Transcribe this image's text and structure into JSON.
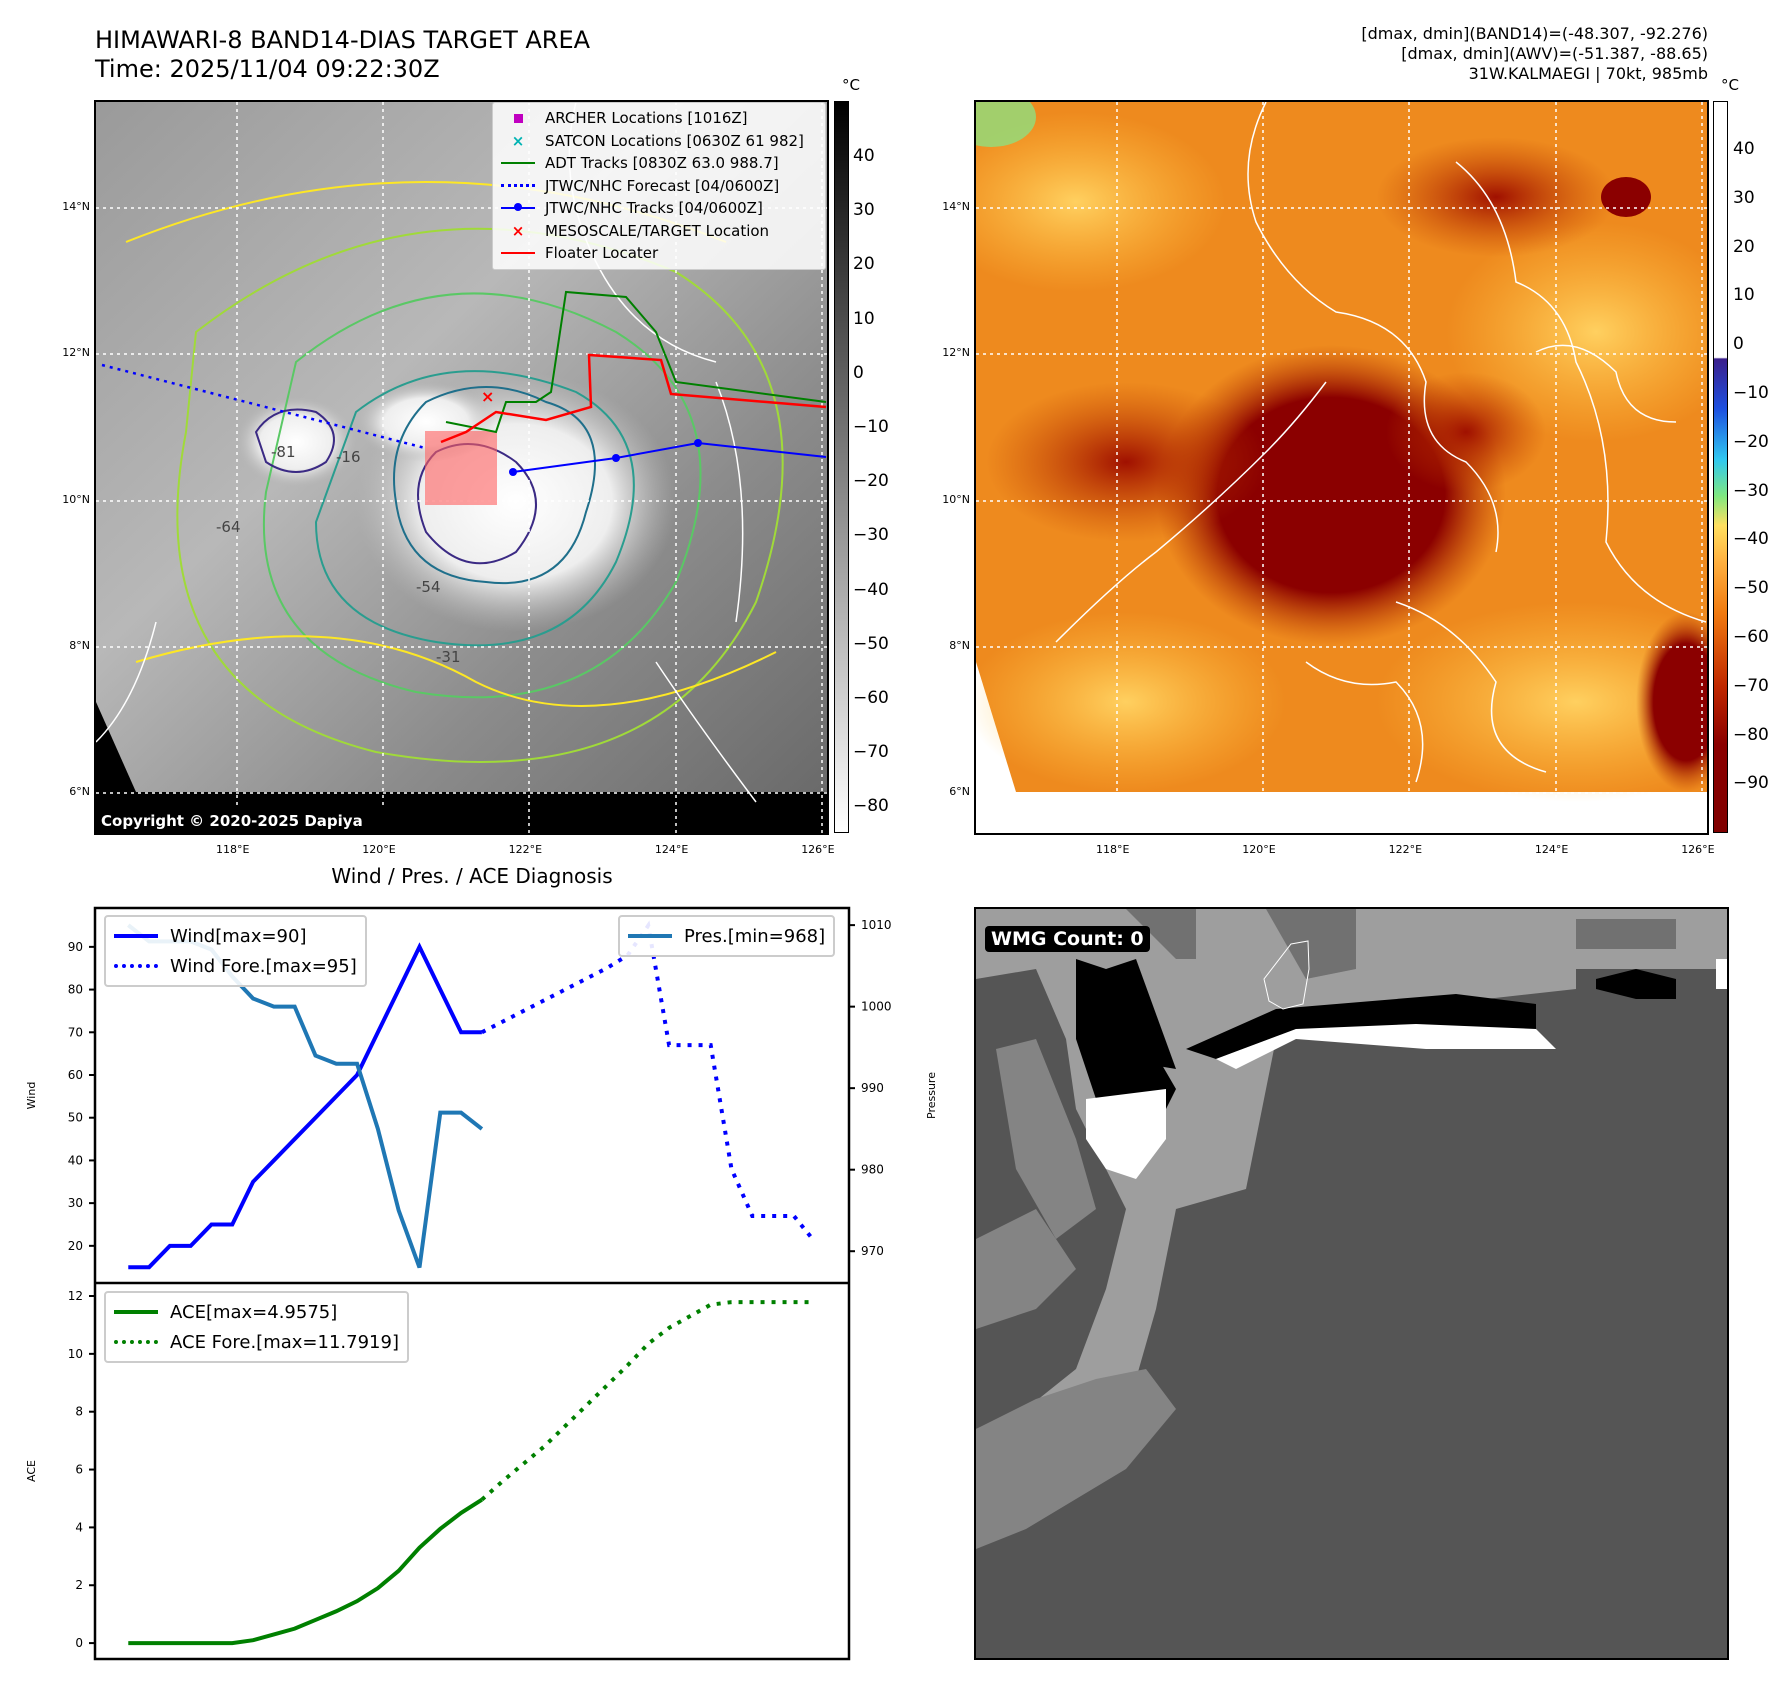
{
  "header": {
    "title_line1": "HIMAWARI-8 BAND14-DIAS TARGET AREA",
    "title_line2": "Time: 2025/11/04 09:22:30Z",
    "info_line1": "[dmax, dmin](BAND14)=(-48.307, -92.276)",
    "info_line2": "[dmax, dmin](AWV)=(-51.387, -88.65)",
    "info_line3": "31W.KALMAEGI | 70kt, 985mb"
  },
  "map": {
    "lat_ticks": [
      "14°N",
      "12°N",
      "10°N",
      "8°N",
      "6°N"
    ],
    "lon_ticks": [
      "118°E",
      "120°E",
      "122°E",
      "124°E",
      "126°E"
    ],
    "copyright": "Copyright © 2020-2025 Dapiya",
    "contour_labels": [
      "-31",
      "-16",
      "-64",
      "-81",
      "-54"
    ],
    "legend": [
      {
        "label": "ARCHER Locations [1016Z]",
        "color": "#c000c0",
        "icon": "square-marker-icon"
      },
      {
        "label": "SATCON Locations [0630Z 61 982]",
        "color": "#00b3b3",
        "icon": "x-marker-icon"
      },
      {
        "label": "ADT Tracks [0830Z 63.0 988.7]",
        "color": "#008000",
        "icon": "solid-line-icon"
      },
      {
        "label": "JTWC/NHC Forecast [04/0600Z]",
        "color": "#0000ff",
        "icon": "dotted-line-icon"
      },
      {
        "label": "JTWC/NHC Tracks [04/0600Z]",
        "color": "#0000ff",
        "icon": "line-dot-icon"
      },
      {
        "label": "MESOSCALE/TARGET Location",
        "color": "#ff0000",
        "icon": "x-marker-icon"
      },
      {
        "label": "Floater Locater",
        "color": "#ff0000",
        "icon": "solid-line-icon"
      }
    ]
  },
  "colorbar_left": {
    "unit": "°C",
    "ticks": [
      "40",
      "30",
      "20",
      "10",
      "0",
      "−10",
      "−20",
      "−30",
      "−40",
      "−50",
      "−60",
      "−70",
      "−80"
    ]
  },
  "colorbar_right": {
    "unit": "°C",
    "ticks": [
      "40",
      "30",
      "20",
      "10",
      "0",
      "−10",
      "−20",
      "−30",
      "−40",
      "−50",
      "−60",
      "−70",
      "−80",
      "−90"
    ]
  },
  "wmg": {
    "label": "WMG Count: 0"
  },
  "chart_data": {
    "type": "line",
    "title": "Wind / Pres. / ACE Diagnosis",
    "x_range": [
      -1.6,
      34.65
    ],
    "wind": {
      "ylabel": "Wind",
      "ylim": [
        11.3,
        99.1
      ],
      "ticks": [
        20,
        30,
        40,
        50,
        60,
        70,
        80,
        90
      ],
      "series": [
        {
          "name": "Wind[max=90]",
          "style": "solid",
          "color": "#0000ff",
          "x0": 0,
          "values": [
            15,
            15,
            20,
            20,
            25,
            25,
            35,
            40,
            45,
            50,
            55,
            60,
            70,
            80,
            90,
            80,
            70,
            70
          ]
        },
        {
          "name": "Wind Fore.[max=95]",
          "style": "dotted",
          "color": "#0000ff",
          "x0": 17,
          "values": [
            70,
            72.5,
            75,
            77.5,
            80,
            82.5,
            85,
            88,
            95,
            67,
            67,
            67,
            38,
            27,
            27,
            27,
            21
          ]
        }
      ]
    },
    "pressure": {
      "ylabel": "Pressure",
      "ylim": [
        966.1,
        1012.1
      ],
      "ticks": [
        970,
        980,
        990,
        1000,
        1010
      ],
      "series": [
        {
          "name": "Pres.[min=968]",
          "style": "solid",
          "color": "#1f77b4",
          "x0": 0,
          "values": [
            1010,
            1008,
            1008,
            1008,
            1007,
            1003.7,
            1001,
            1000,
            1000,
            994,
            993,
            993,
            985,
            975,
            968,
            987,
            987,
            985
          ]
        }
      ]
    },
    "ace": {
      "ylabel": "ACE",
      "ylim": [
        -0.55,
        12.45
      ],
      "ticks": [
        0,
        2,
        4,
        6,
        8,
        10,
        12
      ],
      "series": [
        {
          "name": "ACE[max=4.9575]",
          "style": "solid",
          "color": "#008000",
          "x0": 0,
          "values": [
            0,
            0,
            0,
            0,
            0,
            0,
            0.1,
            0.3,
            0.5,
            0.8,
            1.1,
            1.45,
            1.9,
            2.5,
            3.3,
            3.95,
            4.5,
            4.96
          ]
        },
        {
          "name": "ACE Fore.[max=11.7919]",
          "style": "dotted",
          "color": "#008000",
          "x0": 17,
          "values": [
            4.96,
            5.6,
            6.2,
            6.8,
            7.5,
            8.2,
            8.9,
            9.6,
            10.35,
            10.9,
            11.3,
            11.7,
            11.79,
            11.79,
            11.79,
            11.79,
            11.79
          ]
        }
      ]
    }
  }
}
